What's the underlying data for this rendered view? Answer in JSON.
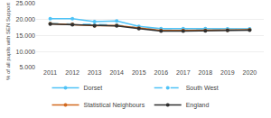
{
  "chart_data": {
    "type": "line",
    "y_label": "% of all pupils with SEN Support",
    "categories": [
      "2011",
      "2012",
      "2013",
      "2014",
      "2015",
      "2016",
      "2017",
      "2018",
      "2019",
      "2020"
    ],
    "series": [
      {
        "name": "Dorset",
        "color": "#4FC3F7",
        "line_style": "solid",
        "marker": "circle",
        "values": [
          20.3,
          20.3,
          19.4,
          19.6,
          17.9,
          17.2,
          17.2,
          17.2,
          17.1,
          17.1
        ]
      },
      {
        "name": "South West",
        "color": "#4FC3F7",
        "line_style": "dashed",
        "marker": "circle",
        "values": [
          18.8,
          18.6,
          18.3,
          18.3,
          17.4,
          16.7,
          16.7,
          16.7,
          16.8,
          16.9
        ]
      },
      {
        "name": "Statistical Neighbours",
        "color": "#D2691E",
        "line_style": "solid",
        "marker": "circle",
        "values": [
          18.7,
          18.5,
          18.1,
          18.2,
          17.3,
          16.6,
          16.6,
          16.6,
          16.7,
          16.8
        ]
      },
      {
        "name": "England",
        "color": "#2F2F2F",
        "line_style": "solid",
        "marker": "circle",
        "values": [
          18.6,
          18.4,
          18.0,
          18.0,
          17.2,
          16.4,
          16.4,
          16.5,
          16.6,
          16.7
        ]
      }
    ],
    "ylim": [
      5.0,
      25.0
    ],
    "yticks": [
      {
        "value": 5.0,
        "label": "5.000"
      },
      {
        "value": 10.0,
        "label": "10.000"
      },
      {
        "value": 15.0,
        "label": "15.000"
      },
      {
        "value": 20.0,
        "label": "20.000"
      },
      {
        "value": 25.0,
        "label": "25.000"
      }
    ],
    "grid": true,
    "legend": "bottom"
  }
}
